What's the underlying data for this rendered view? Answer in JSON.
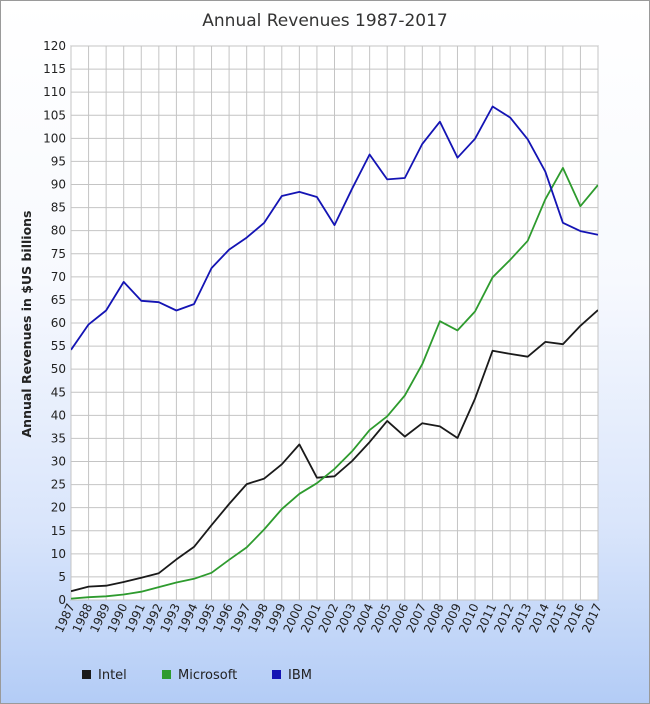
{
  "chart_data": {
    "type": "line",
    "title": "Annual Revenues 1987-2017",
    "xlabel": "",
    "ylabel": "Annual Revenues in $US billions",
    "ylim": [
      0,
      120
    ],
    "ytick_step": 5,
    "grid": true,
    "legend_position": "bottom-left",
    "x": [
      "1987",
      "1988",
      "1989",
      "1990",
      "1991",
      "1992",
      "1993",
      "1994",
      "1995",
      "1996",
      "1997",
      "1998",
      "1999",
      "2000",
      "2001",
      "2002",
      "2003",
      "2004",
      "2005",
      "2006",
      "2007",
      "2008",
      "2009",
      "2010",
      "2011",
      "2012",
      "2013",
      "2014",
      "2015",
      "2016",
      "2017"
    ],
    "series": [
      {
        "name": "Intel",
        "color": "#1a1a1a",
        "values": [
          1.9,
          2.9,
          3.1,
          3.9,
          4.8,
          5.8,
          8.8,
          11.5,
          16.2,
          20.8,
          25.1,
          26.3,
          29.4,
          33.7,
          26.5,
          26.8,
          30.1,
          34.2,
          38.8,
          35.4,
          38.3,
          37.6,
          35.1,
          43.6,
          54.0,
          53.3,
          52.7,
          55.9,
          55.4,
          59.4,
          62.8
        ]
      },
      {
        "name": "Microsoft",
        "color": "#2e9b2e",
        "values": [
          0.3,
          0.6,
          0.8,
          1.2,
          1.8,
          2.8,
          3.8,
          4.6,
          5.9,
          8.7,
          11.4,
          15.3,
          19.7,
          23.0,
          25.3,
          28.4,
          32.2,
          36.8,
          39.8,
          44.3,
          51.1,
          60.4,
          58.4,
          62.5,
          69.9,
          73.7,
          77.8,
          86.8,
          93.6,
          85.3,
          89.9
        ]
      },
      {
        "name": "IBM",
        "color": "#1414b4",
        "values": [
          54.2,
          59.7,
          62.7,
          68.9,
          64.8,
          64.5,
          62.7,
          64.1,
          71.9,
          75.9,
          78.5,
          81.7,
          87.5,
          88.4,
          87.3,
          81.2,
          89.1,
          96.5,
          91.1,
          91.4,
          98.8,
          103.6,
          95.8,
          99.9,
          106.9,
          104.5,
          99.8,
          92.8,
          81.7,
          79.9,
          79.1
        ]
      }
    ]
  }
}
